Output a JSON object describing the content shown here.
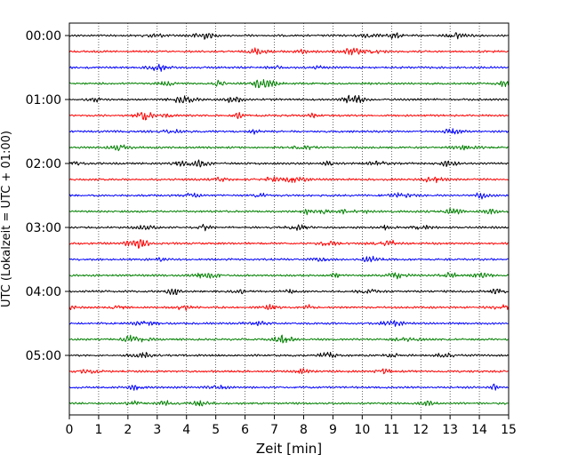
{
  "chart_data": {
    "type": "line",
    "title": "",
    "xlabel": "Zeit  [min]",
    "ylabel": "UTC (Lokalzeit = UTC + 01:00)",
    "xlim": [
      0,
      15
    ],
    "x_ticks": [
      "0",
      "1",
      "2",
      "3",
      "4",
      "5",
      "6",
      "7",
      "8",
      "9",
      "10",
      "11",
      "12",
      "13",
      "14",
      "15"
    ],
    "y_tick_labels": [
      "00:00",
      "01:00",
      "02:00",
      "03:00",
      "04:00",
      "05:00"
    ],
    "grid": "vertical dotted at each minute",
    "traces_per_hour": 4,
    "trace_minutes": 15,
    "trace_count": 24,
    "trace_colors": [
      "#000000",
      "#ff0000",
      "#0000ff",
      "#008000"
    ],
    "series": [
      {
        "start": "00:00",
        "color": "#000000"
      },
      {
        "start": "00:15",
        "color": "#ff0000"
      },
      {
        "start": "00:30",
        "color": "#0000ff"
      },
      {
        "start": "00:45",
        "color": "#008000"
      },
      {
        "start": "01:00",
        "color": "#000000"
      },
      {
        "start": "01:15",
        "color": "#ff0000"
      },
      {
        "start": "01:30",
        "color": "#0000ff"
      },
      {
        "start": "01:45",
        "color": "#008000"
      },
      {
        "start": "02:00",
        "color": "#000000"
      },
      {
        "start": "02:15",
        "color": "#ff0000"
      },
      {
        "start": "02:30",
        "color": "#0000ff"
      },
      {
        "start": "02:45",
        "color": "#008000"
      },
      {
        "start": "03:00",
        "color": "#000000"
      },
      {
        "start": "03:15",
        "color": "#ff0000"
      },
      {
        "start": "03:30",
        "color": "#0000ff"
      },
      {
        "start": "03:45",
        "color": "#008000"
      },
      {
        "start": "04:00",
        "color": "#000000"
      },
      {
        "start": "04:15",
        "color": "#ff0000"
      },
      {
        "start": "04:30",
        "color": "#0000ff"
      },
      {
        "start": "04:45",
        "color": "#008000"
      },
      {
        "start": "05:00",
        "color": "#000000"
      },
      {
        "start": "05:15",
        "color": "#ff0000"
      },
      {
        "start": "05:30",
        "color": "#0000ff"
      },
      {
        "start": "05:45",
        "color": "#008000"
      }
    ]
  }
}
